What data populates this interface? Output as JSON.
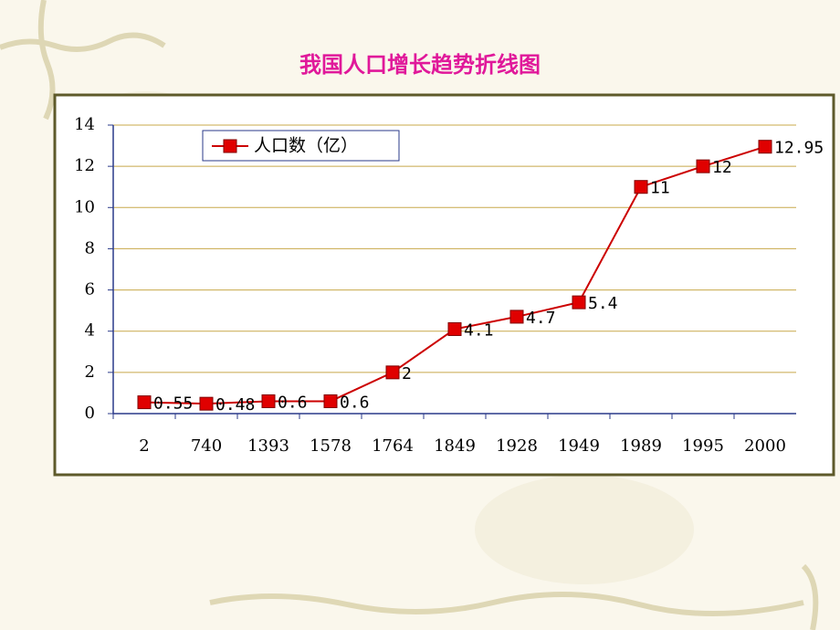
{
  "chart_data": {
    "type": "line",
    "title": "我国人口增长趋势折线图",
    "categories": [
      "2",
      "740",
      "1393",
      "1578",
      "1764",
      "1849",
      "1928",
      "1949",
      "1989",
      "1995",
      "2000"
    ],
    "series": [
      {
        "name": "人口数（亿）",
        "color": "#cc0000",
        "values": [
          0.55,
          0.48,
          0.6,
          0.6,
          2,
          4.1,
          4.7,
          5.4,
          11,
          12,
          12.95
        ]
      }
    ],
    "ylim": [
      0,
      14
    ],
    "yticks": [
      0,
      2,
      4,
      6,
      8,
      10,
      12,
      14
    ],
    "grid": true,
    "data_labels": true,
    "legend": "top-left"
  }
}
